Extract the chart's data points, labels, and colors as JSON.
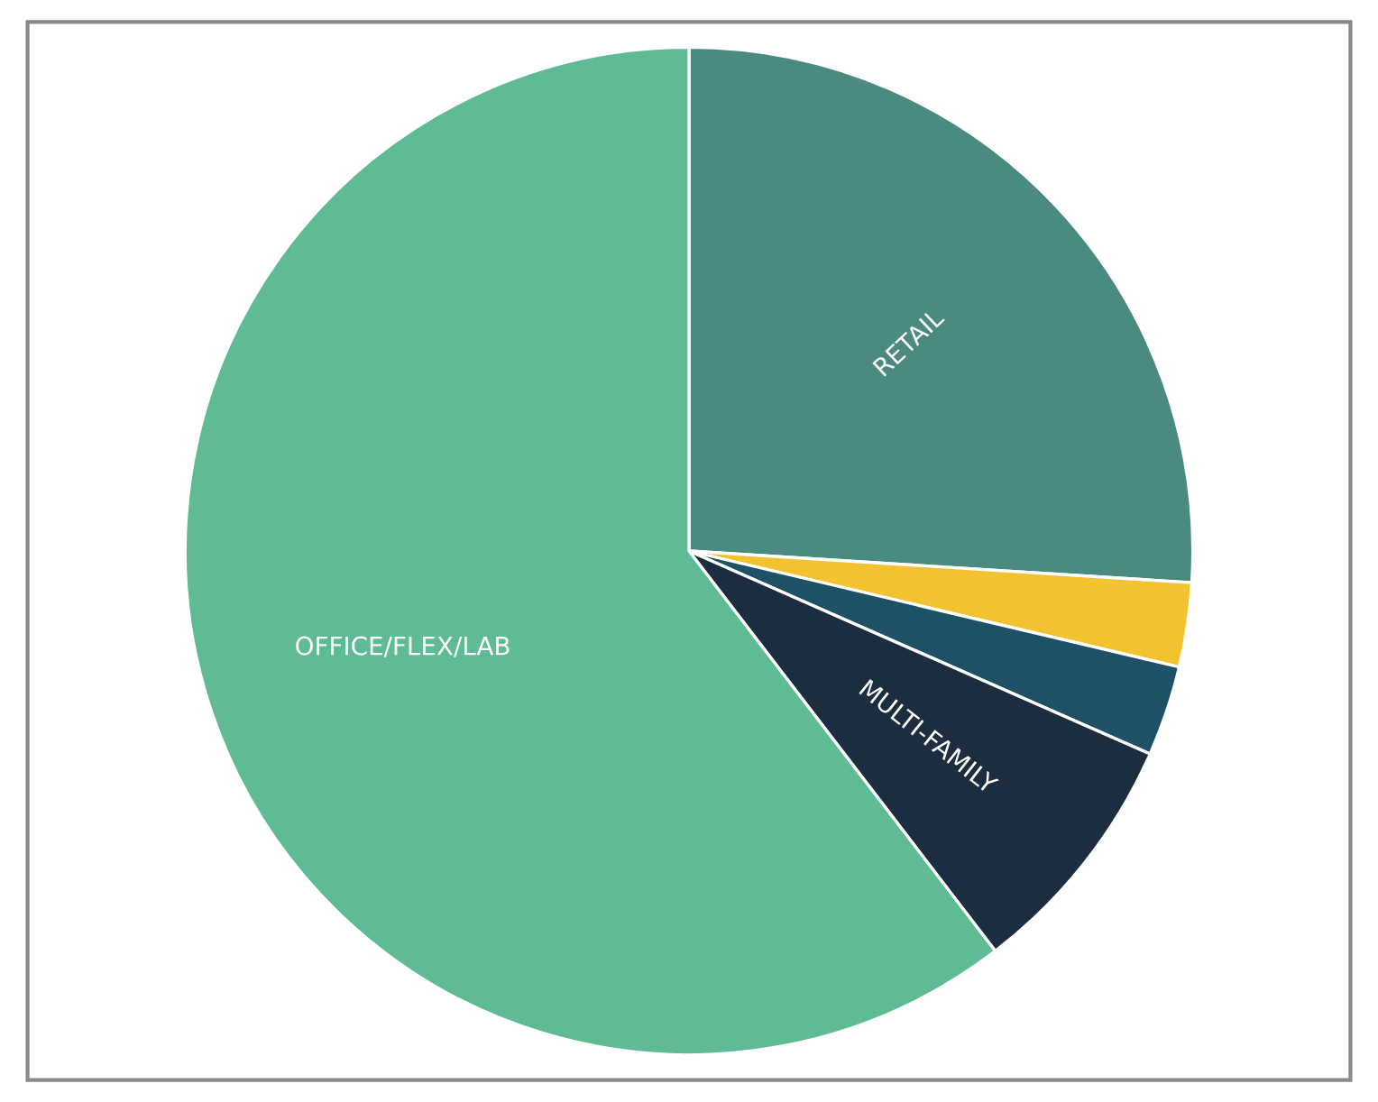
{
  "chart_data": {
    "type": "pie",
    "categories": [
      "RETAIL",
      null,
      null,
      "MULTI-FAMILY",
      "OFFICE/FLEX/LAB"
    ],
    "values": [
      26,
      2.7,
      2.9,
      8,
      60.4
    ],
    "colors": [
      "#4b8a80",
      "#f2c230",
      "#1f5166",
      "#1c2d3f",
      "#5fbb94"
    ]
  }
}
